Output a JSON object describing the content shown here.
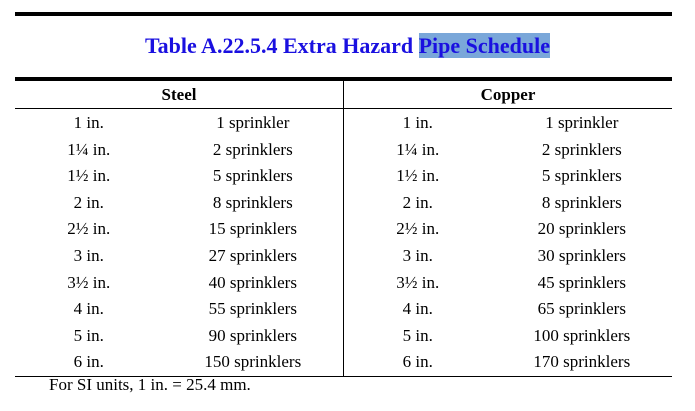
{
  "title_prefix": "Table A.22.5.4  Extra Hazard ",
  "title_highlighted": "Pipe Schedule",
  "highlight_color": "#7aa7d9",
  "title_color": "#1a10e0",
  "columns": [
    "Steel",
    "Copper"
  ],
  "steel": [
    {
      "size": "1 in.",
      "count": "1 sprinkler"
    },
    {
      "size": "1¼ in.",
      "count": "2 sprinklers"
    },
    {
      "size": "1½ in.",
      "count": "5 sprinklers"
    },
    {
      "size": "2 in.",
      "count": "8 sprinklers"
    },
    {
      "size": "2½ in.",
      "count": "15 sprinklers"
    },
    {
      "size": "3 in.",
      "count": "27 sprinklers"
    },
    {
      "size": "3½ in.",
      "count": "40 sprinklers"
    },
    {
      "size": "4 in.",
      "count": "55 sprinklers"
    },
    {
      "size": "5 in.",
      "count": "90 sprinklers"
    },
    {
      "size": "6 in.",
      "count": "150 sprinklers"
    }
  ],
  "copper": [
    {
      "size": "1 in.",
      "count": "1 sprinkler"
    },
    {
      "size": "1¼ in.",
      "count": "2 sprinklers"
    },
    {
      "size": "1½ in.",
      "count": "5 sprinklers"
    },
    {
      "size": "2 in.",
      "count": "8 sprinklers"
    },
    {
      "size": "2½ in.",
      "count": "20 sprinklers"
    },
    {
      "size": "3 in.",
      "count": "30 sprinklers"
    },
    {
      "size": "3½ in.",
      "count": "45 sprinklers"
    },
    {
      "size": "4 in.",
      "count": "65 sprinklers"
    },
    {
      "size": "5 in.",
      "count": "100 sprinklers"
    },
    {
      "size": "6 in.",
      "count": "170 sprinklers"
    }
  ],
  "footnote": "For SI units, 1 in. = 25.4 mm."
}
